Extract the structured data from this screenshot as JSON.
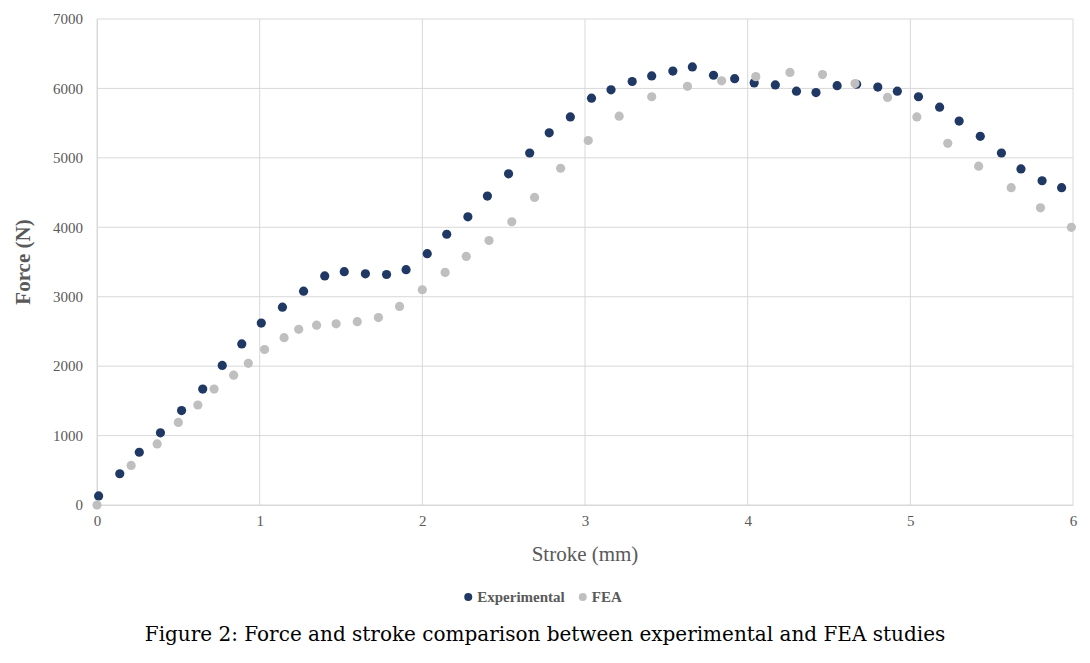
{
  "chart_data": {
    "type": "scatter",
    "title": "Figure 2: Force and stroke comparison between experimental and FEA studies",
    "x_label": "Stroke (mm)",
    "y_label": "Force (N)",
    "xlim": [
      0,
      6
    ],
    "xticks": [
      0,
      1,
      2,
      3,
      4,
      5,
      6
    ],
    "ylim": [
      0,
      7000
    ],
    "yticks": [
      0,
      1000,
      2000,
      3000,
      4000,
      5000,
      6000,
      7000
    ],
    "grid": true,
    "legend": "bottom",
    "marker": "circle",
    "series": [
      {
        "name": "Experimental",
        "color": "#203864",
        "x": [
          0.01,
          0.14,
          0.26,
          0.39,
          0.52,
          0.65,
          0.77,
          0.89,
          1.01,
          1.14,
          1.27,
          1.4,
          1.52,
          1.65,
          1.78,
          1.9,
          2.03,
          2.15,
          2.28,
          2.4,
          2.53,
          2.66,
          2.78,
          2.91,
          3.04,
          3.16,
          3.29,
          3.41,
          3.54,
          3.66,
          3.79,
          3.92,
          4.04,
          4.17,
          4.3,
          4.42,
          4.55,
          4.67,
          4.8,
          4.92,
          5.05,
          5.18,
          5.3,
          5.43,
          5.56,
          5.68,
          5.81,
          5.93
        ],
        "values": [
          130,
          450,
          760,
          1040,
          1360,
          1670,
          2010,
          2320,
          2620,
          2850,
          3080,
          3300,
          3360,
          3330,
          3320,
          3390,
          3620,
          3900,
          4150,
          4450,
          4770,
          5070,
          5360,
          5590,
          5860,
          5980,
          6100,
          6180,
          6250,
          6310,
          6190,
          6140,
          6080,
          6050,
          5960,
          5940,
          6040,
          6060,
          6020,
          5960,
          5880,
          5730,
          5530,
          5310,
          5070,
          4840,
          4670,
          4570
        ]
      },
      {
        "name": "FEA",
        "color": "#bfbfbf",
        "x": [
          0.0,
          0.21,
          0.37,
          0.5,
          0.62,
          0.72,
          0.84,
          0.93,
          1.03,
          1.15,
          1.24,
          1.35,
          1.47,
          1.6,
          1.73,
          1.86,
          2.0,
          2.14,
          2.27,
          2.41,
          2.55,
          2.69,
          2.85,
          3.02,
          3.21,
          3.41,
          3.63,
          3.84,
          4.05,
          4.26,
          4.46,
          4.66,
          4.86,
          5.04,
          5.23,
          5.42,
          5.62,
          5.8,
          5.99
        ],
        "values": [
          0,
          570,
          880,
          1190,
          1440,
          1670,
          1870,
          2040,
          2240,
          2410,
          2530,
          2590,
          2610,
          2640,
          2700,
          2860,
          3100,
          3350,
          3580,
          3810,
          4080,
          4430,
          4850,
          5250,
          5600,
          5880,
          6030,
          6110,
          6170,
          6230,
          6200,
          6070,
          5870,
          5590,
          5210,
          4880,
          4570,
          4280,
          4000
        ]
      }
    ]
  }
}
